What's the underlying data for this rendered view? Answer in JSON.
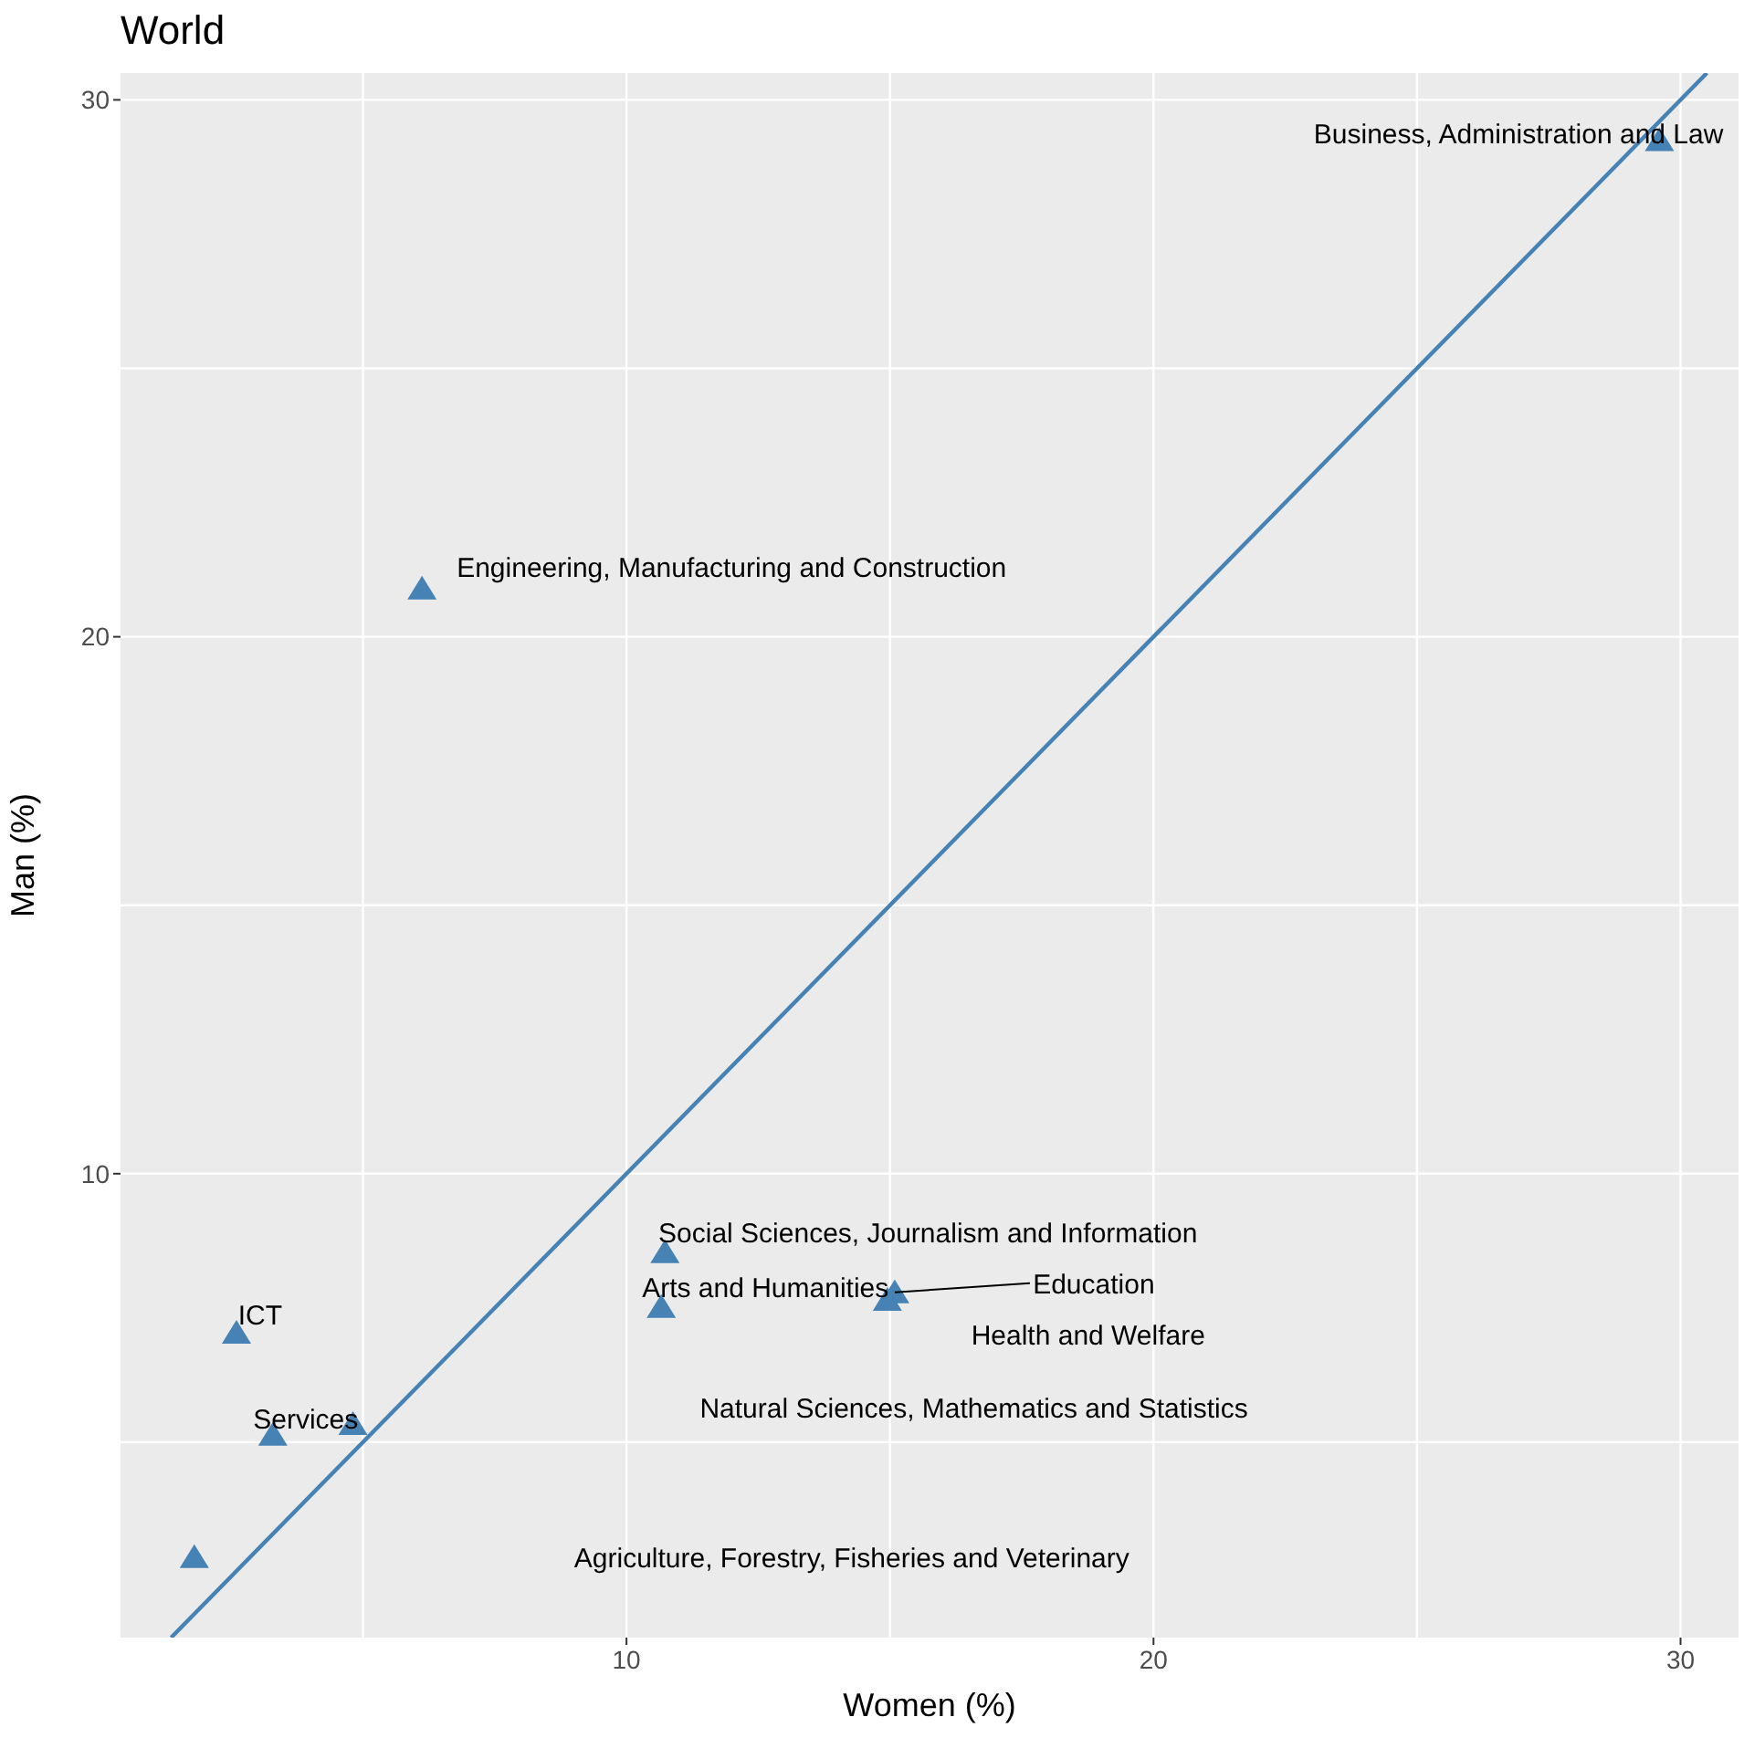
{
  "chart_data": {
    "type": "scatter",
    "title": "World",
    "xlabel": "Women (%)",
    "ylabel": "Man (%)",
    "xlim": [
      0.4,
      31.1
    ],
    "ylim": [
      1.36,
      30.5
    ],
    "xticks": [
      {
        "value": 5,
        "label": null
      },
      10,
      {
        "value": 15,
        "label": null
      },
      20,
      {
        "value": 25,
        "label": null
      },
      30
    ],
    "yticks": [
      {
        "value": 5,
        "label": null
      },
      10,
      {
        "value": 15,
        "label": null
      },
      20,
      {
        "value": 25,
        "label": null
      },
      30
    ],
    "grid": true,
    "legend": false,
    "series": [
      {
        "marker": "triangle",
        "color": "#4682b4",
        "x": [
          1.8,
          10.66,
          29.6,
          15.09,
          6.12,
          14.95,
          2.6,
          4.81,
          3.29,
          10.73
        ],
        "values": [
          2.86,
          7.52,
          29.25,
          7.79,
          20.9,
          7.65,
          7.04,
          5.34,
          5.14,
          8.54
        ]
      },
      {
        "type": "line",
        "color": "#4682b4",
        "x": [
          1.36,
          30.5
        ],
        "values": [
          1.36,
          30.5
        ]
      }
    ],
    "annotations": [
      "Agriculture, Forestry, Fisheries and Veterinary",
      "Arts and Humanities",
      "Business, Administration and Law",
      {
        "text": "Education",
        "x": 15.09,
        "y": 7.79
      },
      "Engineering, Manufacturing and Construction",
      "Health and Welfare",
      "ICT",
      "Natural Sciences, Mathematics and Statistics",
      "Services",
      "Social Sciences, Journalism and Information"
    ]
  }
}
